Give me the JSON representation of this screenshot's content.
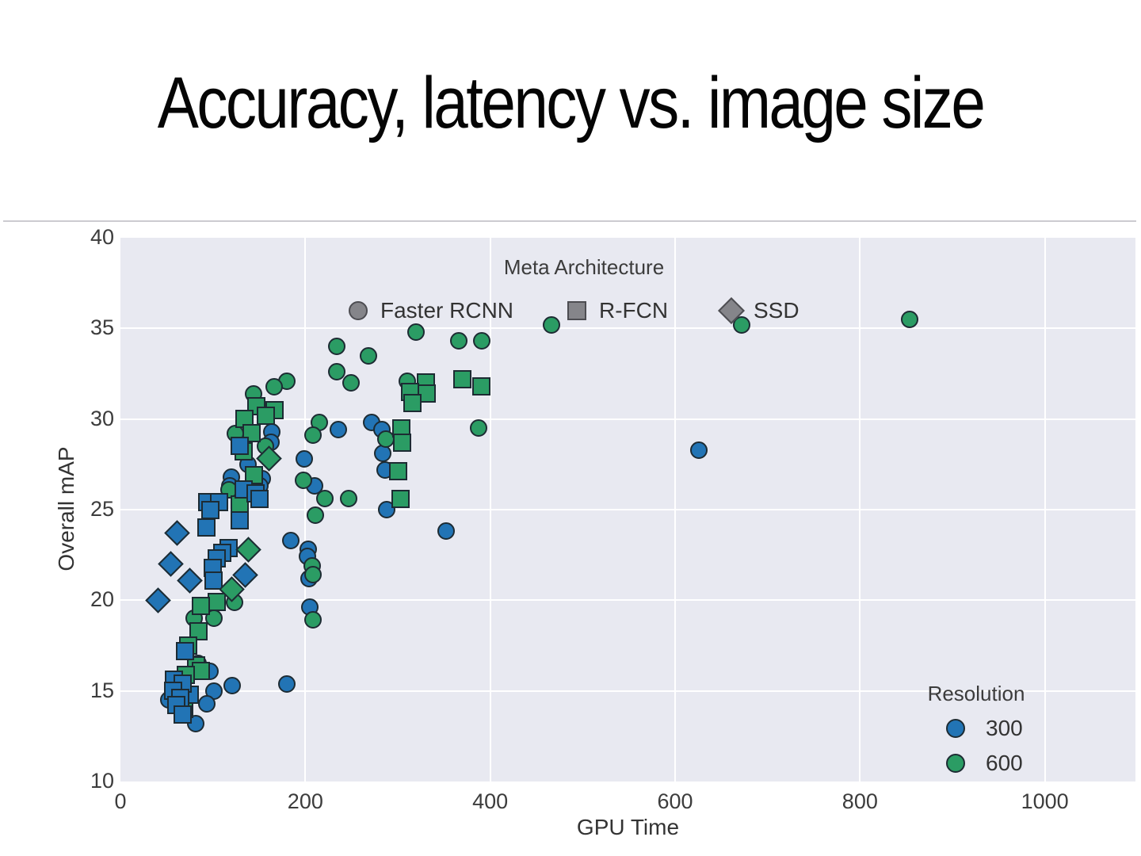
{
  "slide": {
    "title": "Accuracy, latency vs. image size"
  },
  "chart_data": {
    "type": "scatter",
    "title": "",
    "xlabel": "GPU Time",
    "ylabel": "Overall mAP",
    "xlim": [
      0,
      1098
    ],
    "ylim": [
      10,
      40
    ],
    "x_ticks": [
      0,
      200,
      400,
      600,
      800,
      1000
    ],
    "y_ticks": [
      10,
      15,
      20,
      25,
      30,
      35,
      40
    ],
    "grid": true,
    "background": "#e8e9f1",
    "colors": {
      "res300": "#2274b5",
      "res600": "#2b9c64",
      "legend_gray": "#85858a"
    },
    "legends": {
      "meta_architecture": {
        "title": "Meta Architecture",
        "position": "top-center-inside",
        "items": [
          {
            "label": "Faster RCNN",
            "marker": "circle"
          },
          {
            "label": "R-FCN",
            "marker": "square"
          },
          {
            "label": "SSD",
            "marker": "diamond"
          }
        ]
      },
      "resolution": {
        "title": "Resolution",
        "position": "bottom-right-inside",
        "items": [
          {
            "label": "300",
            "color": "#2274b5"
          },
          {
            "label": "600",
            "color": "#2b9c64"
          }
        ]
      }
    },
    "series": [
      {
        "name": "Faster RCNN 300",
        "marker": "circle",
        "resolution": 300,
        "points": [
          [
            272,
            29.8
          ],
          [
            283,
            29.4
          ],
          [
            284,
            28.1
          ],
          [
            286,
            27.2
          ],
          [
            288,
            25.0
          ],
          [
            236,
            29.4
          ],
          [
            626,
            28.3
          ],
          [
            352,
            23.8
          ],
          [
            199,
            27.8
          ],
          [
            210,
            26.3
          ],
          [
            184,
            23.3
          ],
          [
            203,
            22.8
          ],
          [
            202,
            22.4
          ],
          [
            204,
            21.2
          ],
          [
            205,
            19.6
          ],
          [
            164,
            29.3
          ],
          [
            163,
            28.7
          ],
          [
            153,
            26.7
          ],
          [
            151,
            26.3
          ],
          [
            138,
            27.5
          ],
          [
            120,
            26.8
          ],
          [
            118,
            26.3
          ],
          [
            180,
            15.4
          ],
          [
            121,
            15.3
          ],
          [
            101,
            15.0
          ],
          [
            97,
            16.1
          ],
          [
            93,
            14.3
          ],
          [
            52,
            14.5
          ],
          [
            81,
            13.2
          ]
        ]
      },
      {
        "name": "Faster RCNN 600",
        "marker": "circle",
        "resolution": 600,
        "points": [
          [
            854,
            35.5
          ],
          [
            672,
            35.2
          ],
          [
            466,
            35.2
          ],
          [
            320,
            34.8
          ],
          [
            366,
            34.3
          ],
          [
            391,
            34.3
          ],
          [
            234,
            34.0
          ],
          [
            268,
            33.5
          ],
          [
            234,
            32.6
          ],
          [
            249,
            32.0
          ],
          [
            310,
            32.1
          ],
          [
            180,
            32.1
          ],
          [
            166,
            31.8
          ],
          [
            144,
            31.4
          ],
          [
            387,
            29.5
          ],
          [
            215,
            29.8
          ],
          [
            208,
            29.1
          ],
          [
            287,
            28.9
          ],
          [
            124,
            29.2
          ],
          [
            157,
            28.5
          ],
          [
            198,
            26.6
          ],
          [
            117,
            26.1
          ],
          [
            221,
            25.6
          ],
          [
            247,
            25.6
          ],
          [
            211,
            24.7
          ],
          [
            207,
            21.9
          ],
          [
            208,
            21.4
          ],
          [
            208,
            18.9
          ],
          [
            123,
            19.9
          ],
          [
            80,
            19.0
          ],
          [
            101,
            19.0
          ],
          [
            73,
            17.4
          ],
          [
            84,
            16.5
          ]
        ]
      },
      {
        "name": "R-FCN 600",
        "marker": "square",
        "resolution": 600,
        "points": [
          [
            370,
            32.2
          ],
          [
            390,
            31.8
          ],
          [
            330,
            32.0
          ],
          [
            331,
            31.4
          ],
          [
            313,
            31.5
          ],
          [
            316,
            30.9
          ],
          [
            147,
            30.7
          ],
          [
            167,
            30.5
          ],
          [
            157,
            30.2
          ],
          [
            134,
            30.0
          ],
          [
            142,
            29.2
          ],
          [
            133,
            28.2
          ],
          [
            144,
            26.9
          ],
          [
            129,
            25.3
          ],
          [
            304,
            29.5
          ],
          [
            305,
            28.7
          ],
          [
            300,
            27.1
          ],
          [
            303,
            25.6
          ],
          [
            104,
            19.9
          ],
          [
            87,
            19.7
          ],
          [
            84,
            18.3
          ],
          [
            73,
            17.5
          ],
          [
            82,
            16.4
          ],
          [
            87,
            16.1
          ],
          [
            71,
            15.9
          ],
          [
            69,
            14.0
          ]
        ]
      },
      {
        "name": "R-FCN 300",
        "marker": "square",
        "resolution": 300,
        "points": [
          [
            94,
            25.4
          ],
          [
            107,
            25.4
          ],
          [
            133,
            26.1
          ],
          [
            146,
            25.9
          ],
          [
            150,
            25.6
          ],
          [
            97,
            25.0
          ],
          [
            93,
            24.0
          ],
          [
            129,
            24.4
          ],
          [
            129,
            28.5
          ],
          [
            117,
            22.9
          ],
          [
            110,
            22.6
          ],
          [
            104,
            22.3
          ],
          [
            100,
            21.8
          ],
          [
            101,
            21.1
          ],
          [
            70,
            17.2
          ],
          [
            75,
            14.8
          ],
          [
            58,
            15.6
          ],
          [
            67,
            15.4
          ],
          [
            57,
            15.0
          ],
          [
            65,
            14.6
          ],
          [
            60,
            14.2
          ],
          [
            67,
            13.7
          ]
        ]
      },
      {
        "name": "SSD 600",
        "marker": "diamond",
        "resolution": 600,
        "points": [
          [
            161,
            27.8
          ],
          [
            138,
            22.8
          ],
          [
            120,
            20.6
          ]
        ]
      },
      {
        "name": "SSD 300",
        "marker": "diamond",
        "resolution": 300,
        "points": [
          [
            61,
            23.7
          ],
          [
            54,
            22.0
          ],
          [
            75,
            21.1
          ],
          [
            41,
            20.0
          ],
          [
            135,
            21.4
          ]
        ]
      }
    ]
  }
}
